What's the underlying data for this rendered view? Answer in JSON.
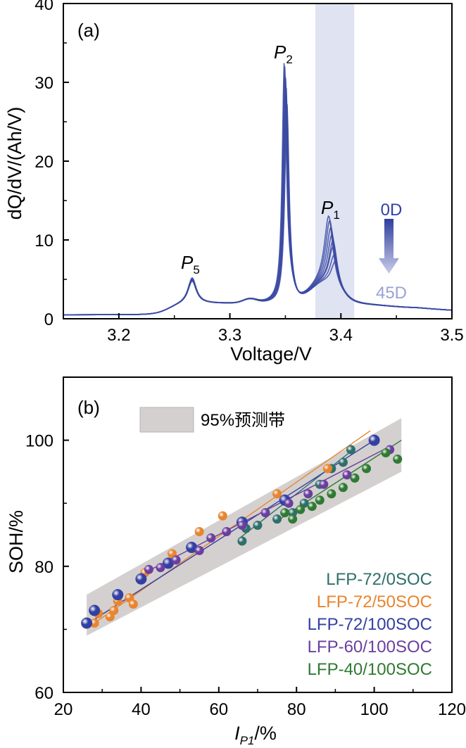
{
  "figure": "two-panel",
  "chart_data": [
    {
      "type": "line",
      "panel_label": "(a)",
      "xlabel": "Voltage/V",
      "ylabel": "dQ/dV/(Ah/V)",
      "xlim": [
        3.15,
        3.5
      ],
      "ylim": [
        0,
        40
      ],
      "xticks": [
        "3.2",
        "3.3",
        "3.4",
        "3.5"
      ],
      "yticks": [
        "0",
        "10",
        "20",
        "30",
        "40"
      ],
      "shaded_region": {
        "x": [
          3.377,
          3.412
        ],
        "color": "#dfe3f2"
      },
      "line_color": "#3b4aa3",
      "peak_labels": [
        {
          "main": "P",
          "sub": "5",
          "x": 3.266,
          "y": 6.1
        },
        {
          "main": "P",
          "sub": "2",
          "x": 3.349,
          "y": 32.5
        },
        {
          "main": "P",
          "sub": "1",
          "x": 3.39,
          "y": 13.2
        }
      ],
      "arrow": {
        "top_label": "0D",
        "bottom_label": "45D",
        "x": 3.44
      },
      "series": [
        {
          "values": {
            "p5": 5.0,
            "p2": 31.8,
            "p1": 12.8,
            "shift": 0.0
          }
        },
        {
          "values": {
            "p5": 4.9,
            "p2": 31.0,
            "p1": 12.3,
            "shift": 0.001
          }
        },
        {
          "values": {
            "p5": 4.9,
            "p2": 30.2,
            "p1": 11.5,
            "shift": 0.002
          }
        },
        {
          "values": {
            "p5": 4.8,
            "p2": 29.3,
            "p1": 10.7,
            "shift": 0.003
          }
        },
        {
          "values": {
            "p5": 4.8,
            "p2": 28.4,
            "p1": 10.0,
            "shift": 0.004
          }
        },
        {
          "values": {
            "p5": 4.7,
            "p2": 27.6,
            "p1": 9.2,
            "shift": 0.004
          }
        },
        {
          "values": {
            "p5": 4.7,
            "p2": 26.7,
            "p1": 8.3,
            "shift": 0.005
          }
        },
        {
          "values": {
            "p5": 4.6,
            "p2": 25.9,
            "p1": 7.6,
            "shift": 0.006
          }
        }
      ]
    },
    {
      "type": "scatter",
      "panel_label": "(b)",
      "xlabel_main": "I",
      "xlabel_sub": "P1",
      "xlabel_unit": "/%",
      "ylabel": "SOH/%",
      "xlim": [
        20,
        120
      ],
      "ylim": [
        60,
        110
      ],
      "xticks": [
        "20",
        "40",
        "60",
        "80",
        "100",
        "120"
      ],
      "yticks": [
        "60",
        "80",
        "100"
      ],
      "band_legend": "95%预测带",
      "band": {
        "x_start": 26,
        "x_end": 107,
        "upper_start": 75.5,
        "upper_end": 103.5,
        "lower_start": 69.0,
        "lower_end": 95.0,
        "color": "#d4d0cf"
      },
      "series": [
        {
          "name": "LFP-72/0SOC",
          "color": "#2e6f6a",
          "x": [
            66,
            67,
            70,
            75,
            79,
            82,
            86,
            89,
            92,
            94
          ],
          "y": [
            84.0,
            86.0,
            86.5,
            87.5,
            88.5,
            90.0,
            93.0,
            95.5,
            96.5,
            98.5
          ],
          "fit": {
            "x": [
              65,
              95
            ],
            "y": [
              84.3,
              98.7
            ]
          }
        },
        {
          "name": "LFP-72/50SOC",
          "color": "#e8852e",
          "x": [
            28,
            29,
            32,
            33,
            34,
            37,
            38,
            41,
            48,
            55,
            61,
            66,
            75,
            88
          ],
          "y": [
            71.0,
            72.5,
            72.0,
            73.0,
            74.5,
            75.0,
            74.0,
            79.0,
            82.0,
            85.5,
            88.0,
            87.0,
            91.5,
            95.5
          ],
          "fit": {
            "x": [
              28,
              99
            ],
            "y": [
              71.0,
              101.5
            ]
          }
        },
        {
          "name": "LFP-72/100SOC",
          "color": "#3340a3",
          "x": [
            26,
            28,
            34,
            40,
            47,
            53,
            66,
            77,
            100
          ],
          "y": [
            71.0,
            73.0,
            75.5,
            78.0,
            80.5,
            83.0,
            87.0,
            90.5,
            100.0
          ],
          "fit": {
            "x": [
              26,
              100
            ],
            "y": [
              70.8,
              100.0
            ]
          }
        },
        {
          "name": "LFP-60/100SOC",
          "color": "#6a3f9e",
          "x": [
            42,
            45,
            49,
            55,
            58,
            62,
            66,
            72,
            78,
            83,
            87,
            93,
            104
          ],
          "y": [
            79.5,
            79.8,
            81.0,
            82.5,
            84.5,
            85.5,
            86.5,
            88.5,
            90.0,
            91.5,
            93.0,
            94.5,
            98.5
          ],
          "fit": {
            "x": [
              41,
              104
            ],
            "y": [
              79.0,
              99.0
            ]
          }
        },
        {
          "name": "LFP-40/100SOC",
          "color": "#2f7a33",
          "x": [
            77,
            79,
            81,
            84,
            86,
            89,
            92,
            95,
            98,
            103,
            106
          ],
          "y": [
            88.5,
            87.5,
            89.0,
            89.5,
            90.5,
            91.5,
            92.5,
            94.0,
            95.5,
            98.0,
            97.0
          ],
          "fit": {
            "x": [
              76,
              107
            ],
            "y": [
              87.6,
              100.0
            ]
          }
        }
      ]
    }
  ]
}
